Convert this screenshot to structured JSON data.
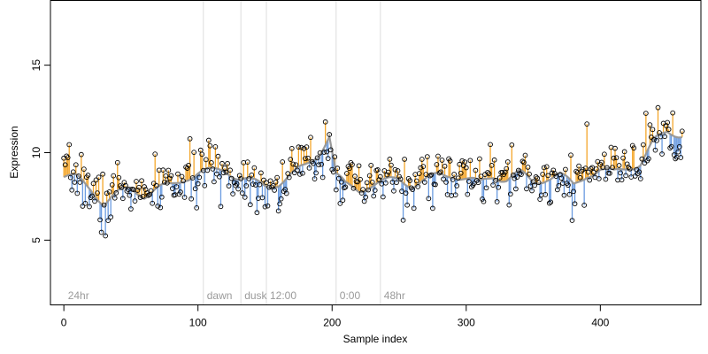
{
  "chart_data": {
    "type": "scatter",
    "title": "",
    "xlabel": "Sample index",
    "ylabel": "Expression",
    "xlim": [
      -10,
      475
    ],
    "ylim": [
      1.3,
      18.7
    ],
    "x_ticks": [
      0,
      100,
      200,
      300,
      400
    ],
    "y_ticks": [
      5,
      10,
      15
    ],
    "grid": false,
    "legend": "none",
    "colors": {
      "above_trend": "#f4a62a",
      "below_trend": "#6a9be0",
      "trend_line": "#999999",
      "points_edge": "#000000",
      "vertical_markers": "#dddddd"
    },
    "vertical_markers": [
      {
        "x": 104,
        "label": "dawn"
      },
      {
        "x": 132,
        "label": "dusk"
      },
      {
        "x": 151,
        "label": "12:00"
      },
      {
        "x": 203,
        "label": "0:00"
      },
      {
        "x": 236,
        "label": "48hr"
      }
    ],
    "corner_label": {
      "x": 3,
      "label": "24hr"
    },
    "anchors": [
      [
        0,
        8.6
      ],
      [
        10,
        8.5
      ],
      [
        20,
        8.0
      ],
      [
        30,
        7.1
      ],
      [
        40,
        7.6
      ],
      [
        50,
        8.0
      ],
      [
        60,
        7.6
      ],
      [
        70,
        7.9
      ],
      [
        80,
        8.1
      ],
      [
        90,
        8.6
      ],
      [
        100,
        8.8
      ],
      [
        110,
        8.9
      ],
      [
        120,
        9.1
      ],
      [
        130,
        8.6
      ],
      [
        140,
        8.3
      ],
      [
        150,
        8.1
      ],
      [
        160,
        8.3
      ],
      [
        170,
        8.7
      ],
      [
        180,
        9.2
      ],
      [
        190,
        10.0
      ],
      [
        198,
        11.0
      ],
      [
        203,
        8.7
      ],
      [
        210,
        8.1
      ],
      [
        220,
        7.9
      ],
      [
        230,
        8.2
      ],
      [
        240,
        8.3
      ],
      [
        250,
        8.5
      ],
      [
        260,
        8.2
      ],
      [
        270,
        8.4
      ],
      [
        280,
        8.7
      ],
      [
        290,
        8.8
      ],
      [
        300,
        8.5
      ],
      [
        310,
        8.2
      ],
      [
        320,
        8.7
      ],
      [
        330,
        8.5
      ],
      [
        340,
        8.8
      ],
      [
        350,
        8.3
      ],
      [
        360,
        8.6
      ],
      [
        370,
        8.7
      ],
      [
        380,
        8.1
      ],
      [
        390,
        8.8
      ],
      [
        400,
        9.0
      ],
      [
        410,
        8.8
      ],
      [
        420,
        9.2
      ],
      [
        430,
        9.4
      ],
      [
        440,
        10.6
      ],
      [
        450,
        11.2
      ],
      [
        460,
        11.1
      ]
    ],
    "n_points": 462,
    "seed": 7
  }
}
